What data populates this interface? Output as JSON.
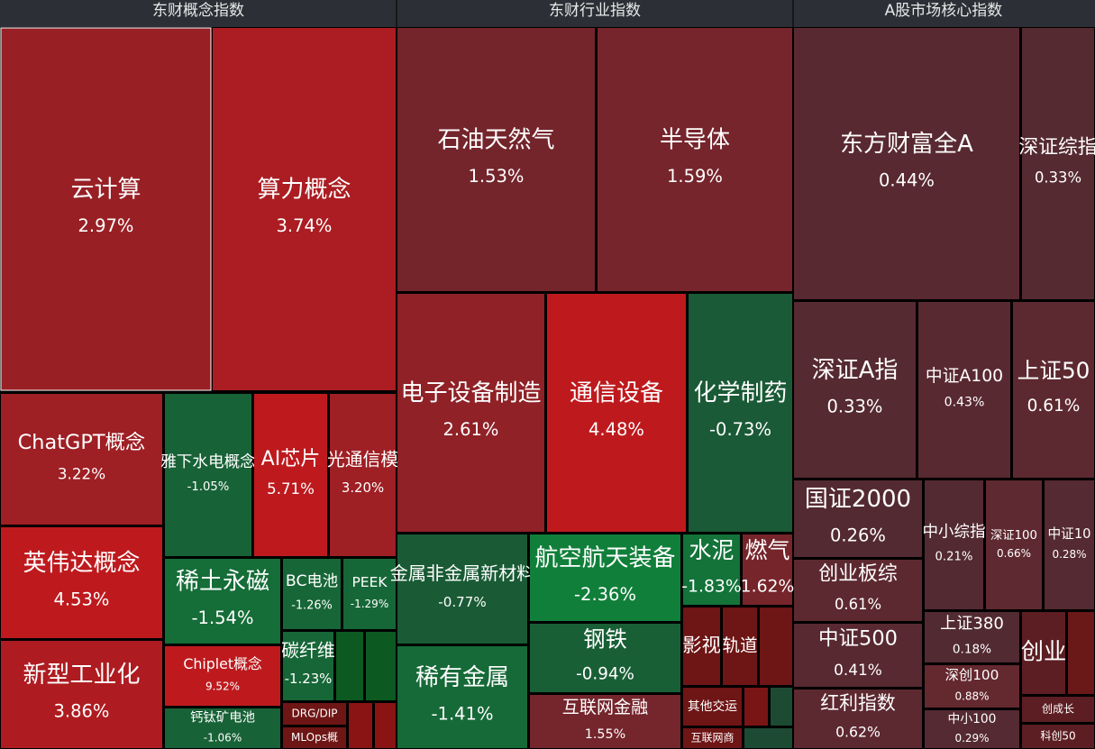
{
  "chart_data": {
    "type": "treemap",
    "panels": [
      {
        "title": "东财概念指数",
        "categories": [
          "云计算",
          "算力概念",
          "ChatGPT概念",
          "英伟达概念",
          "新型工业化",
          "雅下水电概念",
          "AI芯片",
          "光通信模",
          "稀土永磁",
          "Chiplet概念",
          "钙钛矿电池",
          "BC电池",
          "PEEK",
          "碳纤维",
          "DRG/DIP",
          "MLOps概"
        ],
        "values": [
          2.97,
          3.74,
          3.22,
          4.53,
          3.86,
          -1.05,
          5.71,
          3.2,
          -1.54,
          9.52,
          -1.06,
          -1.26,
          -1.29,
          -1.23,
          null,
          null
        ],
        "value_labels": [
          "2.97%",
          "3.74%",
          "3.22%",
          "4.53%",
          "3.86%",
          "-1.05%",
          "5.71%",
          "3.20%",
          "-1.54%",
          "9.52%",
          "-1.06%",
          "-1.26%",
          "-1.29%",
          "-1.23%",
          null,
          null
        ]
      },
      {
        "title": "东财行业指数",
        "categories": [
          "石油天然气",
          "半导体",
          "电子设备制造",
          "通信设备",
          "化学制药",
          "金属非金属新材料",
          "航空航天装备",
          "水泥",
          "燃气",
          "稀有金属",
          "钢铁",
          "互联网金融",
          "影视",
          "轨道",
          "其他交运",
          "互联网商"
        ],
        "values": [
          1.53,
          1.59,
          2.61,
          4.48,
          -0.73,
          -0.77,
          -2.36,
          -1.83,
          1.62,
          -1.41,
          -0.94,
          1.55,
          null,
          null,
          null,
          null
        ],
        "value_labels": [
          "1.53%",
          "1.59%",
          "2.61%",
          "4.48%",
          "-0.73%",
          "-0.77%",
          "-2.36%",
          "-1.83%",
          "1.62%",
          "-1.41%",
          "-0.94%",
          "1.55%",
          null,
          null,
          null,
          null
        ]
      },
      {
        "title": "A股市场核心指数",
        "categories": [
          "东方财富全A",
          "深证综指",
          "深证A指",
          "中证A100",
          "上证50",
          "国证2000",
          "创业板综",
          "中证500",
          "红利指数",
          "中小综指",
          "深证100",
          "中证10",
          "上证380",
          "深创100",
          "中小100",
          "创业",
          "创成长",
          "科创50"
        ],
        "values": [
          0.44,
          0.33,
          0.33,
          0.43,
          0.61,
          0.26,
          0.61,
          0.41,
          0.62,
          0.21,
          0.66,
          0.28,
          0.18,
          0.88,
          0.29,
          null,
          null,
          null
        ],
        "value_labels": [
          "0.44%",
          "0.33%",
          "0.33%",
          "0.43%",
          "0.61%",
          "0.26%",
          "0.61%",
          "0.41%",
          "0.62%",
          "0.21%",
          "0.66%",
          "0.28%",
          "0.18%",
          "0.88%",
          "0.29%",
          null,
          null,
          null
        ]
      }
    ]
  }
}
